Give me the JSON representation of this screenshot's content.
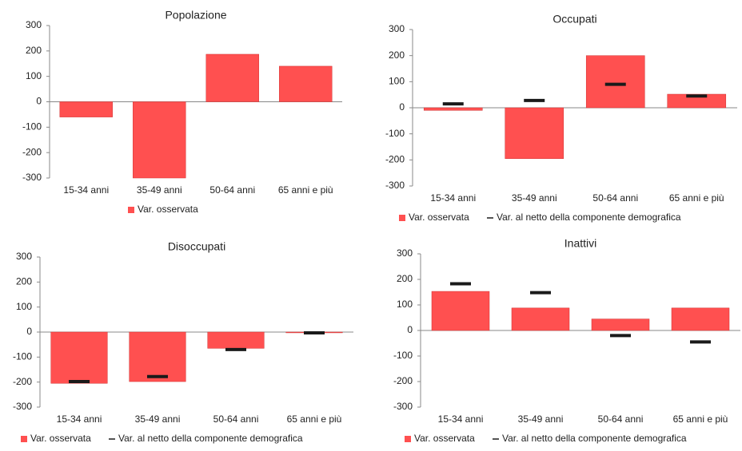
{
  "chart_data": [
    {
      "type": "bar",
      "title": "Popolazione",
      "categories": [
        "15-34 anni",
        "35-49 anni",
        "50-64 anni",
        "65 anni e più"
      ],
      "series": [
        {
          "name": "Var. osservata",
          "color": "#ff5050",
          "mark": "bar",
          "values": [
            -60,
            -300,
            187,
            140
          ]
        }
      ],
      "ylim": [
        -300,
        300
      ],
      "yticks": [
        -300,
        -200,
        -100,
        0,
        100,
        200,
        300
      ]
    },
    {
      "type": "bar",
      "title": "Occupati",
      "categories": [
        "15-34 anni",
        "35-49 anni",
        "50-64 anni",
        "65 anni e più"
      ],
      "series": [
        {
          "name": "Var. osservata",
          "color": "#ff5050",
          "mark": "bar",
          "values": [
            -10,
            -195,
            200,
            52
          ]
        },
        {
          "name": "Var. al netto della componente demografica",
          "color": "#1a1a1a",
          "mark": "dash",
          "values": [
            15,
            28,
            90,
            45
          ]
        }
      ],
      "ylim": [
        -300,
        300
      ],
      "yticks": [
        -300,
        -200,
        -100,
        0,
        100,
        200,
        300
      ]
    },
    {
      "type": "bar",
      "title": "Disoccupati",
      "categories": [
        "15-34 anni",
        "35-49 anni",
        "50-64 anni",
        "65 anni e più"
      ],
      "series": [
        {
          "name": "Var. osservata",
          "color": "#ff5050",
          "mark": "bar",
          "values": [
            -205,
            -198,
            -65,
            -3
          ]
        },
        {
          "name": "Var. al netto della componente demografica",
          "color": "#1a1a1a",
          "mark": "dash",
          "values": [
            -198,
            -178,
            -70,
            -3
          ]
        }
      ],
      "ylim": [
        -300,
        300
      ],
      "yticks": [
        -300,
        -200,
        -100,
        0,
        100,
        200,
        300
      ]
    },
    {
      "type": "bar",
      "title": "Inattivi",
      "categories": [
        "15-34 anni",
        "35-49 anni",
        "50-64 anni",
        "65 anni e più"
      ],
      "series": [
        {
          "name": "Var. osservata",
          "color": "#ff5050",
          "mark": "bar",
          "values": [
            153,
            88,
            45,
            88
          ]
        },
        {
          "name": "Var. al netto della componente demografica",
          "color": "#1a1a1a",
          "mark": "dash",
          "values": [
            183,
            148,
            -20,
            -45
          ]
        }
      ],
      "ylim": [
        -300,
        300
      ],
      "yticks": [
        -300,
        -200,
        -100,
        0,
        100,
        200,
        300
      ]
    }
  ]
}
